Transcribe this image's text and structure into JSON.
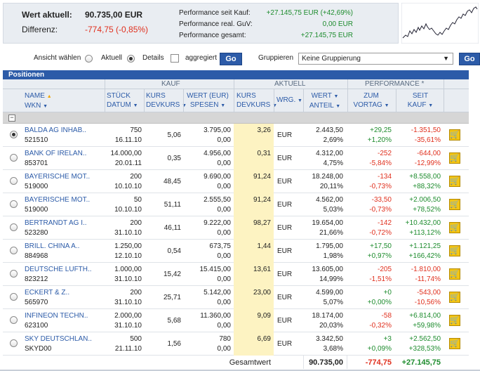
{
  "summary": {
    "wert_label": "Wert aktuell:",
    "wert_value": "90.735,00 EUR",
    "diff_label": "Differenz:",
    "diff_value": "-774,75 (-0,85%)",
    "perf_kauf_label": "Performance seit Kauf:",
    "perf_kauf_value": "+27.145,75 EUR (+42,69%)",
    "perf_guv_label": "Performance real. GuV:",
    "perf_guv_value": "0,00 EUR",
    "perf_gesamt_label": "Performance gesamt:",
    "perf_gesamt_value": "+27.145,75 EUR"
  },
  "controls": {
    "ansicht_label": "Ansicht wählen",
    "aktuell_label": "Aktuell",
    "details_label": "Details",
    "aggregiert_label": "aggregiert",
    "go_label": "Go",
    "gruppieren_label": "Gruppieren",
    "gruppieren_value": "Keine Gruppierung",
    "go2_label": "Go"
  },
  "table": {
    "title": "Positionen",
    "groups": {
      "kauf": "KAUF",
      "aktuell": "AKTUELL",
      "performance": "PERFORMANCE *"
    },
    "headers": {
      "name": "NAME",
      "wkn": "WKN",
      "stueck": "STÜCK",
      "datum": "DATUM",
      "kurs": "KURS",
      "devkurs": "DEVKURS",
      "wert_eur": "WERT (EUR)",
      "spesen": "SPESEN",
      "kurs2": "KURS",
      "devkurs2": "DEVKURS",
      "wrg": "WRG.",
      "wert": "WERT",
      "anteil": "ANTEIL",
      "zum": "ZUM",
      "vortag": "VORTAG",
      "seit": "SEIT",
      "kauf": "KAUF"
    },
    "rows": [
      {
        "name": "BALDA AG INHAB..",
        "wkn": "521510",
        "stueck": "750",
        "datum": "16.11.10",
        "kurs": "5,06",
        "wert": "3.795,00",
        "spesen": "0,00",
        "akurs": "3,26",
        "wrg": "EUR",
        "awert": "2.443,50",
        "anteil": "2,69%",
        "vt_abs": "+29,25",
        "vt_pct": "+1,20%",
        "sk_abs": "-1.351,50",
        "sk_pct": "-35,61%",
        "selected": true
      },
      {
        "name": "BANK OF IRELAN..",
        "wkn": "853701",
        "stueck": "14.000,00",
        "datum": "20.01.11",
        "kurs": "0,35",
        "wert": "4.956,00",
        "spesen": "0,00",
        "akurs": "0,31",
        "wrg": "EUR",
        "awert": "4.312,00",
        "anteil": "4,75%",
        "vt_abs": "-252",
        "vt_pct": "-5,84%",
        "sk_abs": "-644,00",
        "sk_pct": "-12,99%",
        "selected": false
      },
      {
        "name": "BAYERISCHE MOT..",
        "wkn": "519000",
        "stueck": "200",
        "datum": "10.10.10",
        "kurs": "48,45",
        "wert": "9.690,00",
        "spesen": "0,00",
        "akurs": "91,24",
        "wrg": "EUR",
        "awert": "18.248,00",
        "anteil": "20,11%",
        "vt_abs": "-134",
        "vt_pct": "-0,73%",
        "sk_abs": "+8.558,00",
        "sk_pct": "+88,32%",
        "selected": false
      },
      {
        "name": "BAYERISCHE MOT..",
        "wkn": "519000",
        "stueck": "50",
        "datum": "10.10.10",
        "kurs": "51,11",
        "wert": "2.555,50",
        "spesen": "0,00",
        "akurs": "91,24",
        "wrg": "EUR",
        "awert": "4.562,00",
        "anteil": "5,03%",
        "vt_abs": "-33,50",
        "vt_pct": "-0,73%",
        "sk_abs": "+2.006,50",
        "sk_pct": "+78,52%",
        "selected": false
      },
      {
        "name": "BERTRANDT AG I..",
        "wkn": "523280",
        "stueck": "200",
        "datum": "31.10.10",
        "kurs": "46,11",
        "wert": "9.222,00",
        "spesen": "0,00",
        "akurs": "98,27",
        "wrg": "EUR",
        "awert": "19.654,00",
        "anteil": "21,66%",
        "vt_abs": "-142",
        "vt_pct": "-0,72%",
        "sk_abs": "+10.432,00",
        "sk_pct": "+113,12%",
        "selected": false
      },
      {
        "name": "BRILL. CHINA A..",
        "wkn": "884968",
        "stueck": "1.250,00",
        "datum": "12.10.10",
        "kurs": "0,54",
        "wert": "673,75",
        "spesen": "0,00",
        "akurs": "1,44",
        "wrg": "EUR",
        "awert": "1.795,00",
        "anteil": "1,98%",
        "vt_abs": "+17,50",
        "vt_pct": "+0,97%",
        "sk_abs": "+1.121,25",
        "sk_pct": "+166,42%",
        "selected": false
      },
      {
        "name": "DEUTSCHE LUFTH..",
        "wkn": "823212",
        "stueck": "1.000,00",
        "datum": "31.10.10",
        "kurs": "15,42",
        "wert": "15.415,00",
        "spesen": "0,00",
        "akurs": "13,61",
        "wrg": "EUR",
        "awert": "13.605,00",
        "anteil": "14,99%",
        "vt_abs": "-205",
        "vt_pct": "-1,51%",
        "sk_abs": "-1.810,00",
        "sk_pct": "-11,74%",
        "selected": false
      },
      {
        "name": "ECKERT & Z..",
        "wkn": "565970",
        "stueck": "200",
        "datum": "31.10.10",
        "kurs": "25,71",
        "wert": "5.142,00",
        "spesen": "0,00",
        "akurs": "23,00",
        "wrg": "EUR",
        "awert": "4.599,00",
        "anteil": "5,07%",
        "vt_abs": "+0",
        "vt_pct": "+0,00%",
        "sk_abs": "-543,00",
        "sk_pct": "-10,56%",
        "selected": false
      },
      {
        "name": "INFINEON TECHN..",
        "wkn": "623100",
        "stueck": "2.000,00",
        "datum": "31.10.10",
        "kurs": "5,68",
        "wert": "11.360,00",
        "spesen": "0,00",
        "akurs": "9,09",
        "wrg": "EUR",
        "awert": "18.174,00",
        "anteil": "20,03%",
        "vt_abs": "-58",
        "vt_pct": "-0,32%",
        "sk_abs": "+6.814,00",
        "sk_pct": "+59,98%",
        "selected": false
      },
      {
        "name": "SKY DEUTSCHLAN..",
        "wkn": "SKYD00",
        "stueck": "500",
        "datum": "21.11.10",
        "kurs": "1,56",
        "wert": "780",
        "spesen": "0,00",
        "akurs": "6,69",
        "wrg": "EUR",
        "awert": "3.342,50",
        "anteil": "3,68%",
        "vt_abs": "+3",
        "vt_pct": "+0,09%",
        "sk_abs": "+2.562,50",
        "sk_pct": "+328,53%",
        "selected": false
      }
    ],
    "total": {
      "label": "Gesamtwert",
      "wert": "90.735,00",
      "vortag": "-774,75",
      "kauf": "+27.145,75"
    }
  },
  "colors": {
    "accent": "#2c5ba8",
    "positive": "#1e8c2e",
    "negative": "#e0301e",
    "kurs_highlight": "#fdf3c2",
    "cart": "#f3c515"
  }
}
